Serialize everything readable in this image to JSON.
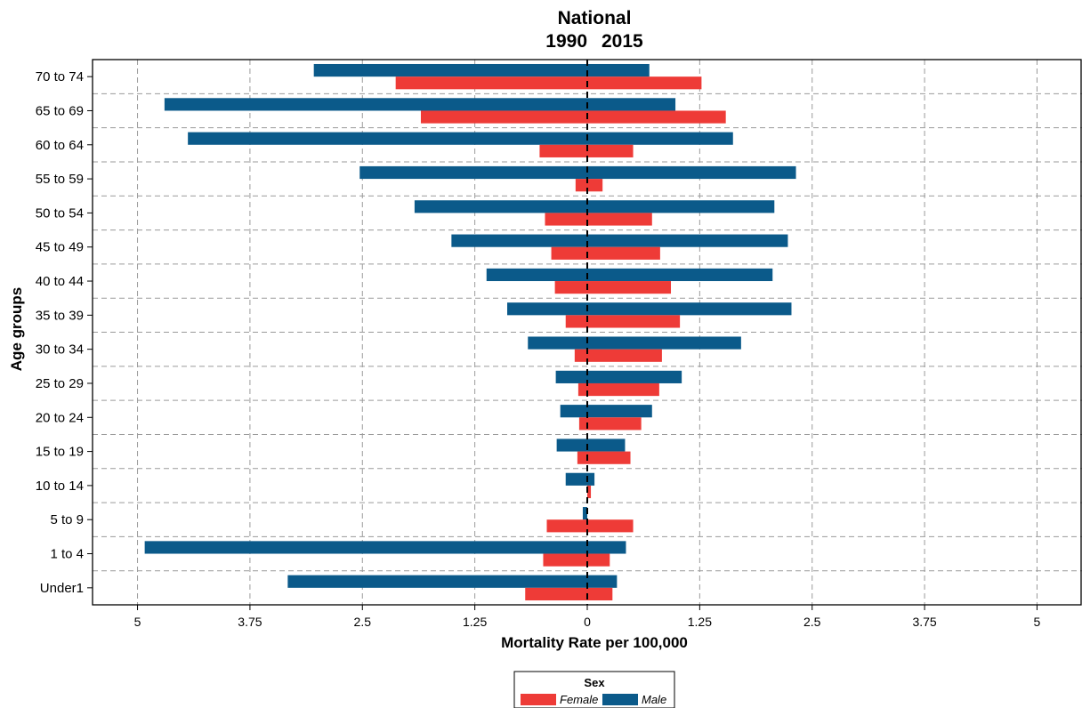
{
  "chart_data": {
    "type": "bar",
    "orientation": "horizontal-butterfly",
    "title": "National",
    "left_label": "1990",
    "right_label": "2015",
    "xlabel": "Mortality Rate per 100,000",
    "ylabel": "Age groups",
    "xlim": [
      -5.5,
      5.5
    ],
    "xticks": [
      -5,
      -3.75,
      -2.5,
      -1.25,
      0,
      1.25,
      2.5,
      3.75,
      5
    ],
    "xtick_labels": [
      "5",
      "3.75",
      "2.5",
      "1.25",
      "0",
      "1.25",
      "2.5",
      "3.75",
      "5"
    ],
    "grid": true,
    "categories": [
      "70 to 74",
      "65 to 69",
      "60 to 64",
      "55 to 59",
      "50 to 54",
      "45 to 49",
      "40 to 44",
      "35 to 39",
      "30 to 34",
      "25 to 29",
      "20 to 24",
      "15 to 19",
      "10 to 14",
      "5 to 9",
      "1 to 4",
      "Under1"
    ],
    "legend": {
      "title": "Sex",
      "position": "bottom-center"
    },
    "series": [
      {
        "name": "Male",
        "color": "#0b5a8a",
        "values_1990": [
          3.04,
          4.7,
          4.44,
          2.53,
          1.92,
          1.51,
          1.12,
          0.89,
          0.66,
          0.35,
          0.3,
          0.34,
          0.24,
          0.05,
          4.92,
          3.33
        ],
        "values_2015": [
          0.69,
          0.98,
          1.62,
          2.32,
          2.08,
          2.23,
          2.06,
          2.27,
          1.71,
          1.05,
          0.72,
          0.42,
          0.08,
          0.0,
          0.43,
          0.33
        ]
      },
      {
        "name": "Female",
        "color": "#ee3b37",
        "values_1990": [
          2.13,
          1.85,
          0.53,
          0.13,
          0.47,
          0.4,
          0.36,
          0.24,
          0.14,
          0.1,
          0.09,
          0.11,
          0.0,
          0.45,
          0.49,
          0.69
        ],
        "values_2015": [
          1.27,
          1.54,
          0.51,
          0.17,
          0.72,
          0.81,
          0.93,
          1.03,
          0.83,
          0.8,
          0.6,
          0.48,
          0.04,
          0.51,
          0.25,
          0.28
        ]
      }
    ]
  }
}
